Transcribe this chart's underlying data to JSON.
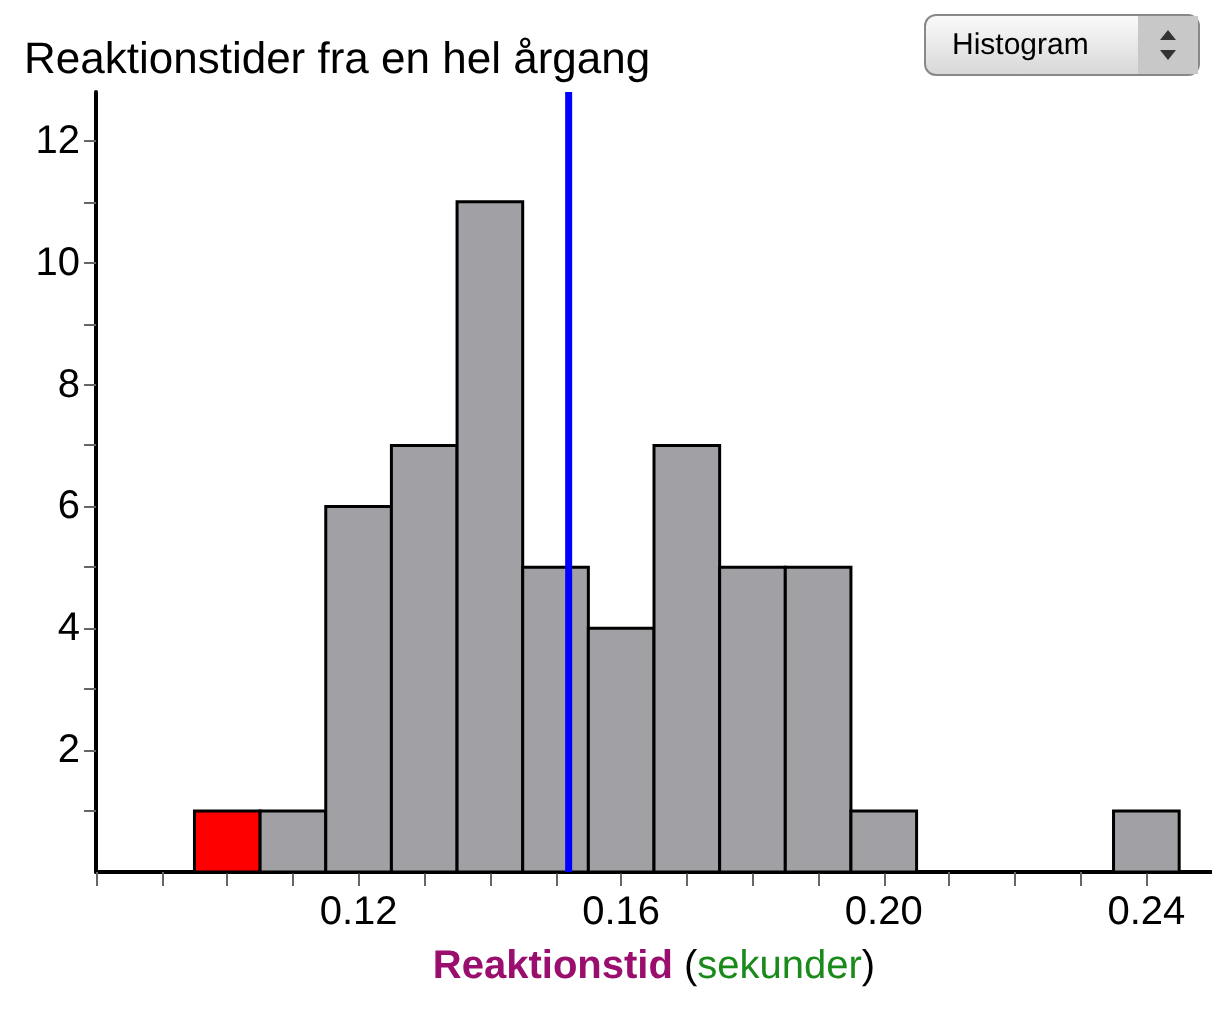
{
  "chart_data": {
    "type": "histogram",
    "title": "Reaktionstider fra en hel årgang",
    "xlabel": "Reaktionstid (sekunder)",
    "bins": [
      0.095,
      0.105,
      0.115,
      0.125,
      0.135,
      0.145,
      0.155,
      0.165,
      0.175,
      0.185,
      0.195,
      0.205,
      0.215,
      0.225,
      0.235,
      0.245
    ],
    "values": [
      1,
      1,
      6,
      7,
      11,
      5,
      4,
      7,
      5,
      5,
      1,
      0,
      0,
      0,
      1
    ],
    "colors": [
      "#ff0000",
      "#a1a0a5",
      "#a1a0a5",
      "#a1a0a5",
      "#a1a0a5",
      "#a1a0a5",
      "#a1a0a5",
      "#a1a0a5",
      "#a1a0a5",
      "#a1a0a5",
      "#a1a0a5",
      "#a1a0a5",
      "#a1a0a5",
      "#a1a0a5",
      "#a1a0a5"
    ],
    "xlim": [
      0.08,
      0.25
    ],
    "xticks": [
      {
        "value": 0.08,
        "label": null
      },
      {
        "value": 0.09,
        "label": null
      },
      {
        "value": 0.1,
        "label": null
      },
      {
        "value": 0.11,
        "label": null
      },
      {
        "value": 0.12,
        "label": "0.12"
      },
      {
        "value": 0.13,
        "label": null
      },
      {
        "value": 0.14,
        "label": null
      },
      {
        "value": 0.15,
        "label": null
      },
      {
        "value": 0.16,
        "label": "0.16"
      },
      {
        "value": 0.17,
        "label": null
      },
      {
        "value": 0.18,
        "label": null
      },
      {
        "value": 0.19,
        "label": null
      },
      {
        "value": 0.2,
        "label": "0.20"
      },
      {
        "value": 0.21,
        "label": null
      },
      {
        "value": 0.22,
        "label": null
      },
      {
        "value": 0.23,
        "label": null
      },
      {
        "value": 0.24,
        "label": "0.24"
      }
    ],
    "ylim": [
      0,
      12.8
    ],
    "yticks": [
      {
        "value": 1,
        "label": null
      },
      2,
      {
        "value": 3,
        "label": null
      },
      4,
      {
        "value": 5,
        "label": null
      },
      6,
      {
        "value": 7,
        "label": null
      },
      8,
      {
        "value": 9,
        "label": null
      },
      10,
      {
        "value": 11,
        "label": null
      },
      12
    ],
    "ref_lines": [
      {
        "axis": "x",
        "value": 0.152,
        "color": "#0000ff"
      }
    ],
    "annotations": [
      "Histogram"
    ],
    "grid": false,
    "legend": false
  }
}
